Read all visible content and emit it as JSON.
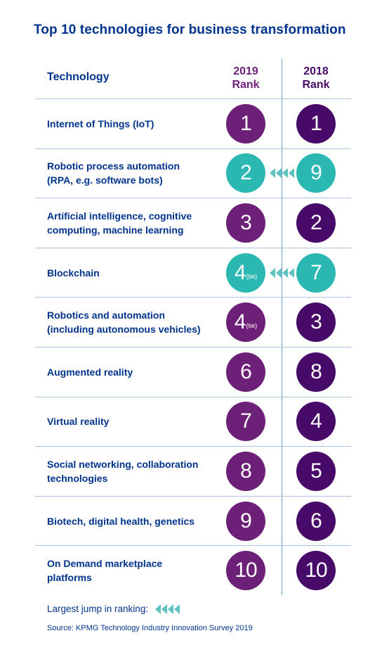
{
  "title": "Top 10 technologies for business transformation",
  "headers": {
    "technology": "Technology",
    "rank2019_line1": "2019",
    "rank2019_line2": "Rank",
    "rank2018_line1": "2018",
    "rank2018_line2": "Rank"
  },
  "rows": [
    {
      "tech": "Internet of Things (IoT)",
      "r2019": "1",
      "r2018": "1",
      "tie": "",
      "jump": false
    },
    {
      "tech": "Robotic process automation (RPA, e.g. software bots)",
      "r2019": "2",
      "r2018": "9",
      "tie": "",
      "jump": true
    },
    {
      "tech": "Artificial intelligence, cognitive computing, machine learning",
      "r2019": "3",
      "r2018": "2",
      "tie": "",
      "jump": false
    },
    {
      "tech": "Blockchain",
      "r2019": "4",
      "r2018": "7",
      "tie": "(tie)",
      "jump": true
    },
    {
      "tech": "Robotics and automation (including autonomous vehicles)",
      "r2019": "4",
      "r2018": "3",
      "tie": "(tie)",
      "jump": false
    },
    {
      "tech": "Augmented reality",
      "r2019": "6",
      "r2018": "8",
      "tie": "",
      "jump": false
    },
    {
      "tech": "Virtual reality",
      "r2019": "7",
      "r2018": "4",
      "tie": "",
      "jump": false
    },
    {
      "tech": "Social networking, collaboration technologies",
      "r2019": "8",
      "r2018": "5",
      "tie": "",
      "jump": false
    },
    {
      "tech": "Biotech, digital health, genetics",
      "r2019": "9",
      "r2018": "6",
      "tie": "",
      "jump": false
    },
    {
      "tech": "On Demand marketplace platforms",
      "r2019": "10",
      "r2018": "10",
      "tie": "",
      "jump": false
    }
  ],
  "legend": "Largest jump in ranking:",
  "source": "Source: KPMG Technology Industry Innovation Survey 2019",
  "colors": {
    "title": "#00338d",
    "rank2019": "#6d2077",
    "rank2018": "#470a68",
    "jump": "#2bb8b3",
    "arrow": "#5ec2c0"
  },
  "icons": {
    "jump": "left-arrows-icon"
  }
}
